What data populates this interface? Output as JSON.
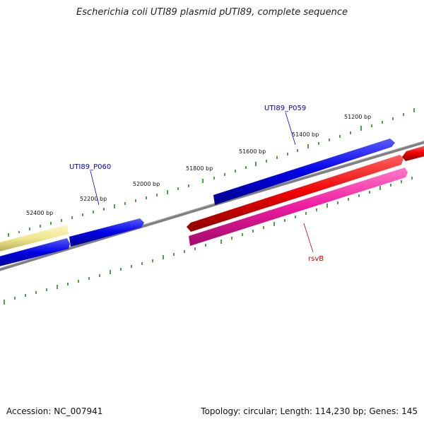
{
  "title": "Escherichia coli UTI89 plasmid pUTI89, complete sequence",
  "footer": {
    "accession": "Accession: NC_007941",
    "info": "Topology: circular; Length: 114,230 bp; Genes: 145"
  },
  "scale_labels": [
    "51200 bp",
    "51400 bp",
    "51600 bp",
    "51800 bp",
    "52000 bp",
    "52200 bp",
    "52400 bp"
  ],
  "gene_labels": [
    {
      "text": "UTI89_P059",
      "color": "#0000cc"
    },
    {
      "text": "UTI89_P060",
      "color": "#0000cc"
    },
    {
      "text": "rsvB",
      "color": "#cc0000"
    }
  ],
  "colors": {
    "backbone": "#808080",
    "ticks": "#1a7a1a",
    "gene_blue": "#0000ee",
    "gene_red": "#ee0000",
    "gene_pink": "#ee1aa0",
    "gene_yellow": "#f0e68c"
  }
}
